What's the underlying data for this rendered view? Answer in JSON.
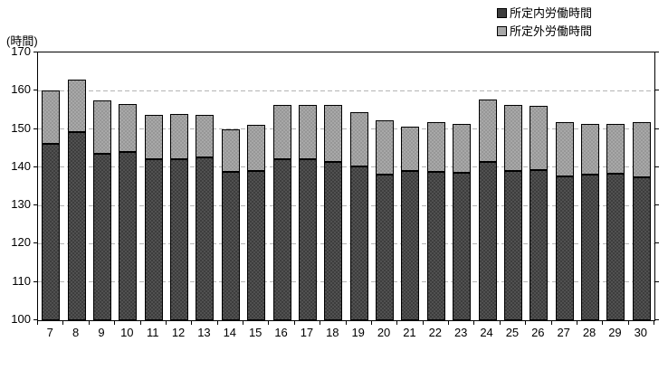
{
  "chart_data": {
    "type": "bar",
    "stacked": true,
    "ylabel": "(時間)",
    "xlabel": "",
    "categories": [
      "7",
      "8",
      "9",
      "10",
      "11",
      "12",
      "13",
      "14",
      "15",
      "16",
      "17",
      "18",
      "19",
      "20",
      "21",
      "22",
      "23",
      "24",
      "25",
      "26",
      "27",
      "28",
      "29",
      "30"
    ],
    "series": [
      {
        "name": "所定内労働時間",
        "color": "#3d3d3d",
        "values": [
          146.2,
          149.1,
          143.5,
          144.0,
          142.0,
          142.0,
          142.5,
          138.8,
          139.1,
          142.0,
          142.2,
          141.4,
          140.1,
          138.1,
          139.0,
          138.8,
          138.6,
          141.4,
          139.1,
          139.3,
          137.6,
          138.1,
          138.4,
          137.4
        ]
      },
      {
        "name": "所定外労働時間",
        "color": "#a8a8a8",
        "values": [
          13.9,
          13.7,
          13.9,
          12.5,
          11.6,
          12.0,
          11.2,
          11.2,
          12.0,
          14.4,
          14.0,
          14.8,
          14.3,
          14.2,
          11.6,
          13.0,
          12.8,
          16.4,
          17.1,
          16.8,
          14.2,
          13.1,
          12.8,
          14.3
        ]
      }
    ],
    "totals": [
      160.1,
      162.8,
      157.4,
      156.5,
      153.6,
      154.0,
      153.7,
      150.0,
      151.1,
      156.4,
      156.2,
      156.2,
      154.4,
      152.3,
      150.6,
      151.8,
      151.4,
      157.8,
      156.2,
      156.1,
      151.8,
      151.2,
      151.2,
      151.7
    ],
    "ylim": [
      100,
      170
    ],
    "yticks": [
      100,
      110,
      120,
      130,
      140,
      150,
      160,
      170
    ],
    "grid": true,
    "legend_position": "top-right",
    "colors": {
      "plot_border": "#000000",
      "gridline": "#b4b4b4",
      "background": "#ffffff"
    }
  }
}
